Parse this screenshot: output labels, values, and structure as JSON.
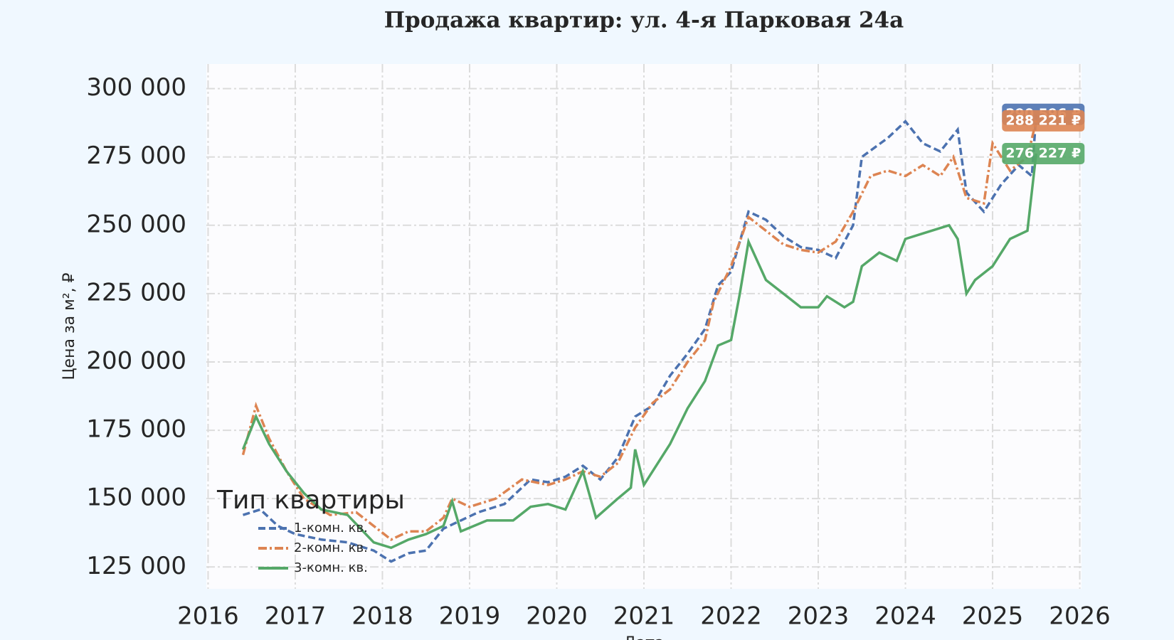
{
  "chart_data": {
    "type": "line",
    "title": "Продажа квартир: ул. 4-я Парковая 24а",
    "y_label": "Цена за м², ₽",
    "x_label": "Дата",
    "legend_title": "Тип квартиры",
    "legend": "lower left",
    "grid": true,
    "xlim": [
      2015.98,
      2026.02
    ],
    "xticks": [
      2016,
      2017,
      2018,
      2019,
      2020,
      2021,
      2022,
      2023,
      2024,
      2025,
      2026
    ],
    "ylim": [
      117000,
      309000
    ],
    "yticks": [
      {
        "value": 125000,
        "label": "125 000"
      },
      {
        "value": 150000,
        "label": "150 000"
      },
      {
        "value": 175000,
        "label": "175 000"
      },
      {
        "value": 200000,
        "label": "200 000"
      },
      {
        "value": 225000,
        "label": "225 000"
      },
      {
        "value": 250000,
        "label": "250 000"
      },
      {
        "value": 275000,
        "label": "275 000"
      },
      {
        "value": 300000,
        "label": "300 000"
      }
    ],
    "series": [
      {
        "name": "1-комн. кв.",
        "color": "#4c72b0",
        "dash": "10 5",
        "x": [
          2016.4,
          2016.6,
          2016.8,
          2017.0,
          2017.3,
          2017.6,
          2017.9,
          2018.1,
          2018.3,
          2018.5,
          2018.7,
          2018.9,
          2019.1,
          2019.4,
          2019.7,
          2019.9,
          2020.1,
          2020.3,
          2020.5,
          2020.7,
          2020.9,
          2021.1,
          2021.3,
          2021.5,
          2021.7,
          2021.85,
          2022.0,
          2022.2,
          2022.4,
          2022.6,
          2022.8,
          2023.0,
          2023.2,
          2023.4,
          2023.5,
          2023.8,
          2024.0,
          2024.2,
          2024.4,
          2024.6,
          2024.7,
          2024.9,
          2025.1,
          2025.3,
          2025.45,
          2025.5
        ],
        "values": [
          144000,
          146000,
          140000,
          137000,
          135000,
          134000,
          131000,
          127000,
          130000,
          131000,
          139000,
          142000,
          145000,
          148000,
          157000,
          156000,
          158000,
          162000,
          157000,
          165000,
          180000,
          184000,
          195000,
          203000,
          212000,
          228000,
          233000,
          255000,
          252000,
          246000,
          242000,
          241000,
          238000,
          250000,
          275000,
          282000,
          288000,
          280000,
          277000,
          285000,
          262000,
          255000,
          265000,
          272000,
          268000,
          290596
        ],
        "value_labels": [
          null,
          null,
          null,
          null,
          null,
          null,
          null,
          null,
          null,
          null,
          null,
          null,
          null,
          null,
          null,
          null,
          null,
          null,
          null,
          null,
          null,
          null,
          null,
          null,
          null,
          null,
          null,
          null,
          null,
          null,
          null,
          null,
          null,
          null,
          null,
          null,
          null,
          null,
          null,
          null,
          null,
          null,
          null,
          null,
          null,
          "290 596 ₽"
        ]
      },
      {
        "name": "2-комн. кв.",
        "color": "#dd8452",
        "dash": "12 4 3 4",
        "x": [
          2016.4,
          2016.55,
          2016.7,
          2016.9,
          2017.1,
          2017.4,
          2017.7,
          2017.9,
          2018.1,
          2018.3,
          2018.5,
          2018.7,
          2018.8,
          2019.0,
          2019.3,
          2019.6,
          2019.9,
          2020.1,
          2020.3,
          2020.5,
          2020.7,
          2020.9,
          2021.1,
          2021.3,
          2021.5,
          2021.7,
          2021.8,
          2022.0,
          2022.2,
          2022.4,
          2022.6,
          2022.8,
          2023.0,
          2023.2,
          2023.4,
          2023.6,
          2023.8,
          2024.0,
          2024.2,
          2024.4,
          2024.55,
          2024.7,
          2024.9,
          2025.0,
          2025.2,
          2025.4,
          2025.5
        ],
        "values": [
          166000,
          184000,
          172000,
          160000,
          150000,
          144000,
          145000,
          140000,
          135000,
          138000,
          138000,
          143000,
          150000,
          147000,
          150000,
          157000,
          155000,
          157000,
          160000,
          158000,
          163000,
          176000,
          185000,
          190000,
          200000,
          208000,
          222000,
          235000,
          253000,
          248000,
          243000,
          241000,
          240000,
          244000,
          255000,
          268000,
          270000,
          268000,
          272000,
          268000,
          275000,
          260000,
          258000,
          280000,
          270000,
          275000,
          288221
        ],
        "value_labels": [
          null,
          null,
          null,
          null,
          null,
          null,
          null,
          null,
          null,
          null,
          null,
          null,
          null,
          null,
          null,
          null,
          null,
          null,
          null,
          null,
          null,
          null,
          null,
          null,
          null,
          null,
          null,
          null,
          null,
          null,
          null,
          null,
          null,
          null,
          null,
          null,
          null,
          null,
          null,
          null,
          null,
          null,
          null,
          null,
          null,
          null,
          "288 221 ₽"
        ]
      },
      {
        "name": "3-комн. кв.",
        "color": "#55a868",
        "dash": "none",
        "x": [
          2016.4,
          2016.55,
          2016.7,
          2016.9,
          2017.1,
          2017.3,
          2017.6,
          2017.9,
          2018.1,
          2018.3,
          2018.5,
          2018.7,
          2018.8,
          2018.9,
          2019.2,
          2019.5,
          2019.7,
          2019.9,
          2020.1,
          2020.3,
          2020.45,
          2020.7,
          2020.85,
          2020.9,
          2021.0,
          2021.3,
          2021.5,
          2021.7,
          2021.85,
          2022.0,
          2022.1,
          2022.2,
          2022.4,
          2022.6,
          2022.8,
          2023.0,
          2023.1,
          2023.3,
          2023.4,
          2023.5,
          2023.7,
          2023.9,
          2024.0,
          2024.2,
          2024.5,
          2024.6,
          2024.7,
          2024.8,
          2025.0,
          2025.2,
          2025.4,
          2025.5
        ],
        "values": [
          168000,
          180000,
          170000,
          160000,
          152000,
          146000,
          144000,
          134000,
          132000,
          135000,
          137000,
          140000,
          149000,
          138000,
          142000,
          142000,
          147000,
          148000,
          146000,
          160000,
          143000,
          150000,
          154000,
          168000,
          155000,
          170000,
          183000,
          193000,
          206000,
          208000,
          225000,
          244000,
          230000,
          225000,
          220000,
          220000,
          224000,
          220000,
          222000,
          235000,
          240000,
          237000,
          245000,
          247000,
          250000,
          245000,
          225000,
          230000,
          235000,
          245000,
          248000,
          276227
        ],
        "value_labels": [
          null,
          null,
          null,
          null,
          null,
          null,
          null,
          null,
          null,
          null,
          null,
          null,
          null,
          null,
          null,
          null,
          null,
          null,
          null,
          null,
          null,
          null,
          null,
          null,
          null,
          null,
          null,
          null,
          null,
          null,
          null,
          null,
          null,
          null,
          null,
          null,
          null,
          null,
          null,
          null,
          null,
          null,
          null,
          null,
          null,
          null,
          null,
          null,
          null,
          null,
          null,
          "276 227 ₽"
        ]
      }
    ]
  }
}
